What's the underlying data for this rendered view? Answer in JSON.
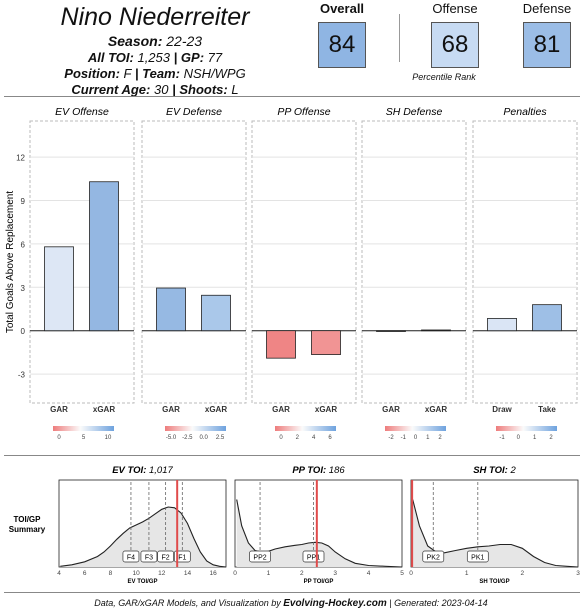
{
  "header": {
    "player_name": "Nino Niederreiter",
    "season_label": "Season:",
    "season_value": "22-23",
    "toi_label": "All TOI:",
    "toi_value": "1,253",
    "gp_label": "GP:",
    "gp_value": "77",
    "position_label": "Position:",
    "position_value": "F",
    "team_label": "Team:",
    "team_value": "NSH/WPG",
    "age_label": "Current Age:",
    "age_value": "30",
    "shoots_label": "Shoots:",
    "shoots_value": "L",
    "separator": "|"
  },
  "ratings": {
    "items": [
      {
        "label": "Overall",
        "value": "84",
        "color": "#8fb5e3"
      },
      {
        "label": "Offense",
        "value": "68",
        "color": "#c7dbf3"
      },
      {
        "label": "Defense",
        "value": "81",
        "color": "#9bbde6"
      }
    ],
    "caption": "Percentile Rank"
  },
  "chart_data": [
    {
      "type": "bar",
      "ylabel": "Total Goals Above Replacement",
      "ylim": [
        -5,
        14.5
      ],
      "yticks": [
        -3,
        0,
        3,
        6,
        9,
        12
      ],
      "panels": [
        {
          "title": "EV Offense",
          "categories": [
            "GAR",
            "xGAR"
          ],
          "values": [
            5.8,
            10.3
          ],
          "colors": [
            "#dde7f5",
            "#94b7e2"
          ],
          "scale": {
            "ticks": [
              "0",
              "5",
              "10"
            ]
          }
        },
        {
          "title": "EV Defense",
          "categories": [
            "GAR",
            "xGAR"
          ],
          "values": [
            2.95,
            2.45
          ],
          "colors": [
            "#96b9e3",
            "#aac8ea"
          ],
          "scale": {
            "ticks": [
              "-5.0",
              "-2.5",
              "0.0",
              "2.5"
            ]
          }
        },
        {
          "title": "PP Offense",
          "categories": [
            "GAR",
            "xGAR"
          ],
          "values": [
            -1.9,
            -1.65
          ],
          "colors": [
            "#ef8585",
            "#f19494"
          ],
          "scale": {
            "ticks": [
              "0",
              "2",
              "4",
              "6"
            ]
          }
        },
        {
          "title": "SH Defense",
          "categories": [
            "GAR",
            "xGAR"
          ],
          "values": [
            0.0,
            0.05
          ],
          "colors": [
            "#f6d8d8",
            "#eef2fa"
          ],
          "scale": {
            "ticks": [
              "-2",
              "-1",
              "0",
              "1",
              "2"
            ]
          }
        },
        {
          "title": "Penalties",
          "categories": [
            "Draw",
            "Take"
          ],
          "values": [
            0.85,
            1.8
          ],
          "colors": [
            "#dae5f5",
            "#9ebfe6"
          ],
          "scale": {
            "ticks": [
              "-1",
              "0",
              "1",
              "2"
            ]
          }
        }
      ]
    },
    {
      "type": "area",
      "row_label": [
        "TOI/GP",
        "Summary"
      ],
      "panels": [
        {
          "title_label": "EV TOI:",
          "title_value": "1,017",
          "xlabel": "EV TOI/GP",
          "xlim": [
            4,
            17
          ],
          "xticks": [
            "4",
            "6",
            "8",
            "10",
            "12",
            "14",
            "16"
          ],
          "xtick_values": [
            4,
            6,
            8,
            10,
            12,
            14,
            16
          ],
          "player_value": 13.2,
          "density_x": [
            4.1,
            5,
            6,
            7,
            7.5,
            8,
            8.5,
            9,
            9.5,
            10,
            10.5,
            11,
            11.5,
            12,
            12.5,
            13,
            13.5,
            14,
            14.5,
            15,
            15.5,
            16,
            16.5,
            17
          ],
          "density_y": [
            0.01,
            0.03,
            0.07,
            0.14,
            0.2,
            0.28,
            0.37,
            0.45,
            0.52,
            0.56,
            0.6,
            0.65,
            0.71,
            0.77,
            0.8,
            0.79,
            0.72,
            0.58,
            0.38,
            0.2,
            0.08,
            0.03,
            0.01,
            0.0
          ],
          "markers": [
            {
              "label": "F4",
              "x": 9.6
            },
            {
              "label": "F3",
              "x": 11.0
            },
            {
              "label": "F2",
              "x": 12.3
            },
            {
              "label": "F1",
              "x": 13.6
            }
          ]
        },
        {
          "title_label": "PP TOI:",
          "title_value": "186",
          "xlabel": "PP TOI/GP",
          "xlim": [
            0,
            5
          ],
          "xticks": [
            "0",
            "1",
            "2",
            "3",
            "4",
            "5"
          ],
          "xtick_values": [
            0,
            1,
            2,
            3,
            4,
            5
          ],
          "player_value": 2.45,
          "density_x": [
            0.05,
            0.2,
            0.4,
            0.6,
            0.8,
            1.0,
            1.2,
            1.5,
            1.8,
            2.0,
            2.2,
            2.4,
            2.6,
            2.8,
            3.0,
            3.3,
            3.6,
            4.0,
            4.5,
            5.0
          ],
          "density_y": [
            0.9,
            0.55,
            0.32,
            0.22,
            0.2,
            0.21,
            0.24,
            0.27,
            0.29,
            0.3,
            0.32,
            0.33,
            0.32,
            0.28,
            0.2,
            0.11,
            0.05,
            0.02,
            0.01,
            0.0
          ],
          "markers": [
            {
              "label": "PP2",
              "x": 0.75
            },
            {
              "label": "PP1",
              "x": 2.35
            }
          ]
        },
        {
          "title_label": "SH TOI:",
          "title_value": "2",
          "xlabel": "SH TOI/GP",
          "xlim": [
            0,
            3
          ],
          "xticks": [
            "0",
            "1",
            "2",
            "3"
          ],
          "xtick_values": [
            0,
            1,
            2,
            3
          ],
          "player_value": 0.02,
          "density_x": [
            0.03,
            0.15,
            0.3,
            0.45,
            0.6,
            0.8,
            1.0,
            1.2,
            1.4,
            1.6,
            1.8,
            2.0,
            2.2,
            2.4,
            2.6,
            2.8,
            3.0
          ],
          "density_y": [
            0.9,
            0.55,
            0.28,
            0.2,
            0.19,
            0.22,
            0.25,
            0.27,
            0.28,
            0.3,
            0.3,
            0.25,
            0.14,
            0.06,
            0.02,
            0.01,
            0.0
          ],
          "markers": [
            {
              "label": "PK2",
              "x": 0.4
            },
            {
              "label": "PK1",
              "x": 1.2
            }
          ]
        }
      ]
    }
  ],
  "footer": {
    "prefix": "Data, GAR/xGAR Models, and Visualization by ",
    "brand": "Evolving-Hockey.com",
    "suffix": " | Generated: 2023-04-14"
  }
}
